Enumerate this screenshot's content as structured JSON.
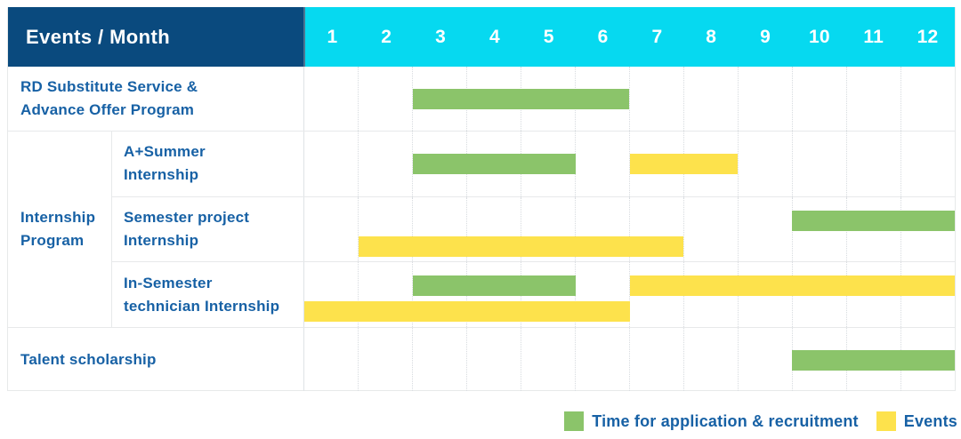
{
  "colors": {
    "header_navy": "#0a4a7e",
    "header_cyan": "#06d9f0",
    "application_green": "#8bc46a",
    "events_yellow": "#fde24c",
    "label_blue": "#1761a5"
  },
  "header": {
    "corner_label": "Events / Month",
    "months": [
      "1",
      "2",
      "3",
      "4",
      "5",
      "6",
      "7",
      "8",
      "9",
      "10",
      "11",
      "12"
    ]
  },
  "gantt": {
    "group_label_lines": [
      "Internship",
      "Program"
    ],
    "rows": [
      {
        "label_lines": [
          "RD Substitute Service &",
          "Advance Offer Program"
        ],
        "in_group": false,
        "bars": [
          {
            "color": "green",
            "start": 3,
            "end": 7,
            "line": "center"
          }
        ]
      },
      {
        "label_lines": [
          "A+Summer",
          "Internship"
        ],
        "in_group": true,
        "bars": [
          {
            "color": "green",
            "start": 3,
            "end": 6,
            "line": "center"
          },
          {
            "color": "yellow",
            "start": 7,
            "end": 9,
            "line": "center"
          }
        ]
      },
      {
        "label_lines": [
          "Semester project",
          "Internship"
        ],
        "in_group": true,
        "bars": [
          {
            "color": "green",
            "start": 10,
            "end": 13,
            "line": "line1"
          },
          {
            "color": "yellow",
            "start": 2,
            "end": 8,
            "line": "line2"
          }
        ]
      },
      {
        "label_lines": [
          "In-Semester",
          "technician Internship"
        ],
        "in_group": true,
        "bars": [
          {
            "color": "green",
            "start": 3,
            "end": 6,
            "line": "line1"
          },
          {
            "color": "yellow",
            "start": 7,
            "end": 13,
            "line": "line1"
          },
          {
            "color": "yellow",
            "start": 1,
            "end": 7,
            "line": "line2"
          }
        ]
      },
      {
        "label_lines": [
          "Talent scholarship"
        ],
        "in_group": false,
        "bars": [
          {
            "color": "green",
            "start": 10,
            "end": 13,
            "line": "center"
          }
        ]
      }
    ]
  },
  "legend": {
    "items": [
      {
        "color": "green",
        "label": "Time for application & recruitment"
      },
      {
        "color": "yellow",
        "label": "Events"
      }
    ]
  },
  "chart_data": {
    "type": "table",
    "title": "Events / Month",
    "x_axis": {
      "label": "Month",
      "ticks": [
        1,
        2,
        3,
        4,
        5,
        6,
        7,
        8,
        9,
        10,
        11,
        12
      ],
      "range": [
        1,
        12
      ]
    },
    "grid": true,
    "legend_position": "bottom-right",
    "legend": [
      {
        "name": "Time for application & recruitment",
        "color": "#8bc46a"
      },
      {
        "name": "Events",
        "color": "#fde24c"
      }
    ],
    "rows": [
      {
        "event": "RD Substitute Service & Advance Offer Program",
        "group": null,
        "spans": [
          {
            "type": "application",
            "months": [
              3,
              6
            ]
          }
        ]
      },
      {
        "event": "A+Summer Internship",
        "group": "Internship Program",
        "spans": [
          {
            "type": "application",
            "months": [
              3,
              5
            ]
          },
          {
            "type": "events",
            "months": [
              7,
              8
            ]
          }
        ]
      },
      {
        "event": "Semester project Internship",
        "group": "Internship Program",
        "spans": [
          {
            "type": "application",
            "months": [
              10,
              12
            ]
          },
          {
            "type": "events",
            "months": [
              2,
              7
            ]
          }
        ]
      },
      {
        "event": "In-Semester technician Internship",
        "group": "Internship Program",
        "spans": [
          {
            "type": "application",
            "months": [
              3,
              5
            ]
          },
          {
            "type": "events",
            "months": [
              7,
              12
            ]
          },
          {
            "type": "events",
            "months": [
              1,
              6
            ]
          }
        ]
      },
      {
        "event": "Talent scholarship",
        "group": null,
        "spans": [
          {
            "type": "application",
            "months": [
              10,
              12
            ]
          }
        ]
      }
    ]
  }
}
